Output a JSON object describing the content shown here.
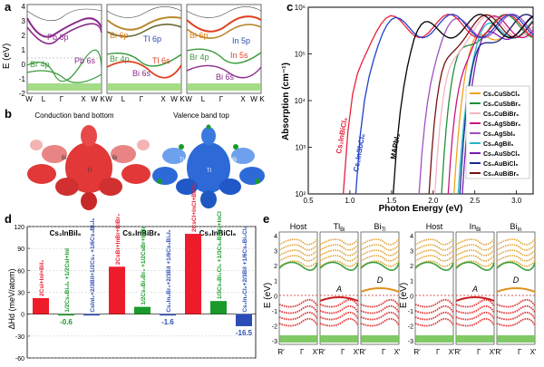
{
  "panels": {
    "a": "a",
    "b": "b",
    "c": "c",
    "d": "d",
    "e": "e"
  },
  "panel_a": {
    "ylabel": "E (eV)",
    "yticks": [
      "4",
      "3",
      "2",
      "1",
      "0",
      "-1",
      "-2"
    ],
    "kpoints": [
      "W",
      "L",
      "Γ",
      "X",
      "W",
      "K"
    ],
    "sub1": {
      "labels": [
        "Pb 6p",
        "Pb 6s",
        "Br 4p"
      ],
      "colors": [
        "#8b2a8b",
        "#8b2a8b",
        "#3a9a3a"
      ]
    },
    "sub2": {
      "labels": [
        "Bi 6p",
        "Tl 6p",
        "Br 4p",
        "Tl 6s",
        "Bi 6s"
      ]
    },
    "sub3": {
      "labels": [
        "Bi 6p",
        "In 5p",
        "Br 4p",
        "In 5s",
        "Bi 6s"
      ]
    }
  },
  "panel_b": {
    "left_title": "Conduction band bottom",
    "right_title": "Valence band top",
    "atom_labels": [
      "Bi",
      "Bi",
      "Tl",
      "Tl",
      "Bi",
      "Tl"
    ]
  },
  "chart_data": [
    {
      "id": "panel_c",
      "type": "line",
      "xlabel": "Photon Energy (eV)",
      "ylabel": "Absorption (cm⁻¹)",
      "xlim": [
        0.5,
        3.2
      ],
      "xticks": [
        "0.5",
        "1.0",
        "1.5",
        "2.0",
        "2.5",
        "3.0"
      ],
      "ylog": true,
      "ylim_exp": [
        2,
        6
      ],
      "yticks": [
        "10²",
        "10³",
        "10⁴",
        "10⁵",
        "10⁶"
      ],
      "inline_labels": [
        "Cs₂InBiCl₆",
        "Cs₂InSbCl₆",
        "MAPbI₃"
      ],
      "series": [
        {
          "name": "Cs₂CuSbCl₆",
          "color": "#f2a21b",
          "onset": 2.25
        },
        {
          "name": "Cs₂CuSbBr₆",
          "color": "#1f8f3a",
          "onset": 2.1
        },
        {
          "name": "Cs₂CuBiBr₆",
          "color": "#f4b6c2",
          "onset": 2.02
        },
        {
          "name": "Cs₂AgSbBr₆",
          "color": "#c71585",
          "onset": 2.18
        },
        {
          "name": "Cs₂AgSbI₆",
          "color": "#a050c0",
          "onset": 1.83
        },
        {
          "name": "Cs₂AgBiI₆",
          "color": "#25b7c8",
          "onset": 2.3
        },
        {
          "name": "Cs₂AuSbCl₆",
          "color": "#7a1bb0",
          "onset": 2.35
        },
        {
          "name": "Cs₂AuBiCl₆",
          "color": "#1a2a8a",
          "onset": 2.32
        },
        {
          "name": "Cs₂AuBiBr₆",
          "color": "#7a1010",
          "onset": 1.95
        },
        {
          "name": "Cs₂InBiCl₆",
          "color": "#e8203a",
          "onset": 0.92
        },
        {
          "name": "Cs₂InSbCl₆",
          "color": "#2040c8",
          "onset": 1.07
        },
        {
          "name": "MAPbI₃",
          "color": "#000000",
          "onset": 1.52
        }
      ]
    },
    {
      "id": "panel_d",
      "type": "bar",
      "ylabel": "ΔHd (meV/atom)",
      "ylim": [
        -60,
        120
      ],
      "yticks": [
        "120",
        "90",
        "60",
        "30",
        "0",
        "-30",
        "-60"
      ],
      "groups": [
        {
          "title": "Cs₂InBiI₆",
          "bars": [
            {
              "label": "2CsI+InI+BiI₃",
              "value": 22,
              "color": "#ee1c2b"
            },
            {
              "label": "1/2Cs₃Bi₂I₉ +1/2CsI+InI",
              "value": -0.6,
              "color": "#1a9a2a",
              "value_label": "-0.6"
            },
            {
              "label": "CsInI₂+2/3BiI+1/2Cs₃ +1/6Cs₃Bi₂I₉",
              "value": -0.3,
              "color": "#2b4db5"
            }
          ]
        },
        {
          "title": "Cs₂InBiBr₆",
          "bars": [
            {
              "label": "2CsBr+InBr+BiBr₃",
              "value": 65,
              "color": "#ee1c2b"
            },
            {
              "label": "1/2Cs₃Bi₂Br₉ +1/2CsBr+InBr",
              "value": 10,
              "color": "#1a9a2a"
            },
            {
              "label": "Cs₂In₂Br₃+2/3BiI +1/6Cs₃Bi₂I₉",
              "value": -1.6,
              "color": "#2b4db5",
              "value_label": "-1.6"
            }
          ]
        },
        {
          "title": "Cs₂InBiCl₆",
          "bars": [
            {
              "label": "2CsCl+InCl+BiCl₃",
              "value": 110,
              "color": "#ee1c2b"
            },
            {
              "label": "1/3Cs₃Bi₂Cl₉ +1/3Cs₂BiCl₆+InCl",
              "value": 18,
              "color": "#1a9a2a"
            },
            {
              "label": "Cs₂In₂Cl₆+2/3BiI +1/6Cs₃Bi₂Cl₉",
              "value": -16.5,
              "color": "#2b4db5",
              "value_label": "-16.5"
            }
          ]
        }
      ]
    }
  ],
  "panel_e": {
    "ylabel": "E (eV)",
    "yticks": [
      "4",
      "3",
      "2",
      "1",
      "0",
      "-1",
      "-2",
      "-3"
    ],
    "left_titles": [
      "Host",
      "Tl",
      "Bi"
    ],
    "left_subs": [
      "",
      "Bi",
      "Tl"
    ],
    "right_titles": [
      "Host",
      "In",
      "Bi"
    ],
    "right_subs": [
      "",
      "Bi",
      "In"
    ],
    "kpoints": [
      "R′",
      "Γ",
      "X′"
    ],
    "defect_labels": [
      "A",
      "D",
      "A",
      "D"
    ]
  }
}
